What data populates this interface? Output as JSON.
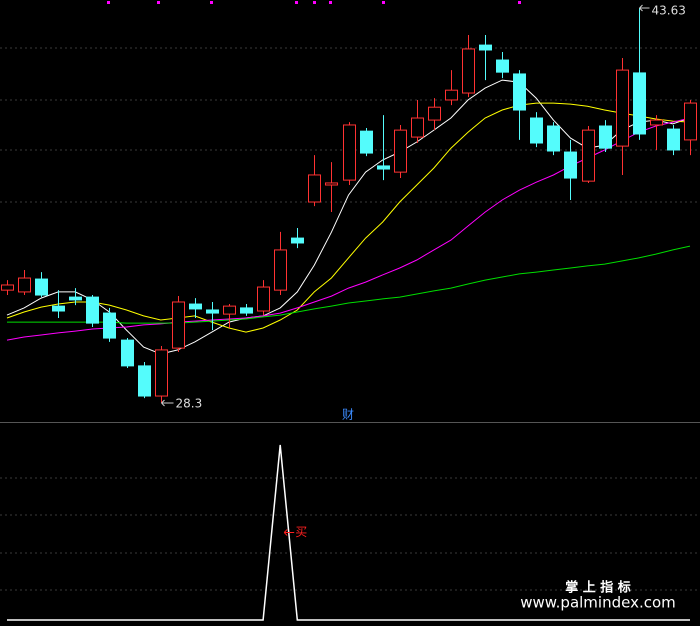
{
  "chart_data": {
    "type": "candlestick",
    "open": [
      32.68,
      32.61,
      33.11,
      32.06,
      32.41,
      32.41,
      31.79,
      30.74,
      29.74,
      28.57,
      30.43,
      32.14,
      31.91,
      31.75,
      31.99,
      31.87,
      32.68,
      34.7,
      36.1,
      36.76,
      36.95,
      38.85,
      37.5,
      37.26,
      38.62,
      39.28,
      40.06,
      40.33,
      42.19,
      41.61,
      41.07,
      39.36,
      39.05,
      38.04,
      36.91,
      39.05,
      38.27,
      41.11,
      39.09,
      38.93,
      38.51
    ],
    "high": [
      33.07,
      33.46,
      33.38,
      32.68,
      32.76,
      32.49,
      31.99,
      30.82,
      29.89,
      30.51,
      32.45,
      32.37,
      32.22,
      32.14,
      32.14,
      33.07,
      34.94,
      35.09,
      37.92,
      37.65,
      39.2,
      38.97,
      39.47,
      39.09,
      40.06,
      40.13,
      41.22,
      42.58,
      42.58,
      41.92,
      41.22,
      39.59,
      39.2,
      38.51,
      39.05,
      39.28,
      41.69,
      43.63,
      39.47,
      39.09,
      40.06
    ],
    "low": [
      32.49,
      32.49,
      32.41,
      31.6,
      32.1,
      31.25,
      30.67,
      29.66,
      28.49,
      28.3,
      30.28,
      31.6,
      31.13,
      31.21,
      31.68,
      31.71,
      32.49,
      34.31,
      35.94,
      35.71,
      36.76,
      37.88,
      36.95,
      37.03,
      38.39,
      38.89,
      39.86,
      40.17,
      40.83,
      40.91,
      38.51,
      38.23,
      37.92,
      36.18,
      36.84,
      38.04,
      37.15,
      38.51,
      38.12,
      37.92,
      37.92
    ],
    "close": [
      32.88,
      33.15,
      32.49,
      31.87,
      32.3,
      31.4,
      30.82,
      29.74,
      28.57,
      30.36,
      32.22,
      31.95,
      31.79,
      32.06,
      31.79,
      32.8,
      34.24,
      34.51,
      37.15,
      36.84,
      39.09,
      38.0,
      37.38,
      38.89,
      39.36,
      39.78,
      40.44,
      42.04,
      42.0,
      41.14,
      39.67,
      38.39,
      38.08,
      37.03,
      38.89,
      38.19,
      41.22,
      38.74,
      39.28,
      38.12,
      39.94
    ],
    "up_color": "#ff3232",
    "down_color": "#54fcfc",
    "ylim": [
      27.64,
      43.94
    ],
    "moving_averages": [
      {
        "color": "#ffffff",
        "values": [
          31.71,
          31.99,
          32.37,
          32.61,
          32.61,
          32.3,
          31.83,
          31.13,
          30.47,
          30.2,
          30.36,
          30.67,
          31.05,
          31.44,
          31.6,
          31.68,
          31.99,
          32.61,
          33.65,
          34.93,
          36.37,
          37.26,
          37.73,
          38.04,
          38.43,
          38.89,
          39.36,
          40.06,
          40.52,
          40.83,
          40.75,
          40.13,
          39.28,
          38.58,
          38.19,
          38.31,
          38.89,
          39.2,
          39.28,
          39.13,
          39.36
        ]
      },
      {
        "color": "#ffff00",
        "values": [
          31.6,
          31.83,
          32.02,
          32.14,
          32.22,
          32.22,
          32.1,
          31.91,
          31.68,
          31.52,
          31.6,
          31.68,
          31.44,
          31.21,
          31.05,
          31.21,
          31.52,
          31.91,
          32.61,
          33.15,
          33.93,
          34.7,
          35.32,
          36.1,
          36.76,
          37.42,
          38.19,
          38.81,
          39.36,
          39.67,
          39.86,
          39.94,
          39.94,
          39.9,
          39.82,
          39.67,
          39.55,
          39.44,
          39.32,
          39.24,
          39.2
        ]
      },
      {
        "color": "#ff00ff",
        "values": [
          30.74,
          30.86,
          30.94,
          31.02,
          31.09,
          31.17,
          31.21,
          31.25,
          31.33,
          31.37,
          31.44,
          31.48,
          31.52,
          31.56,
          31.6,
          31.68,
          31.79,
          31.99,
          32.22,
          32.45,
          32.76,
          32.99,
          33.27,
          33.54,
          33.85,
          34.24,
          34.62,
          35.17,
          35.71,
          36.18,
          36.56,
          36.87,
          37.15,
          37.5,
          37.81,
          38.12,
          38.47,
          38.81,
          39.05,
          39.2,
          39.36
        ]
      },
      {
        "color": "#00dd00",
        "values": [
          31.44,
          31.44,
          31.44,
          31.44,
          31.44,
          31.44,
          31.44,
          31.4,
          31.4,
          31.4,
          31.4,
          31.44,
          31.48,
          31.52,
          31.56,
          31.64,
          31.71,
          31.83,
          31.95,
          32.06,
          32.18,
          32.26,
          32.34,
          32.41,
          32.53,
          32.65,
          32.76,
          32.92,
          33.07,
          33.19,
          33.31,
          33.38,
          33.46,
          33.54,
          33.62,
          33.69,
          33.81,
          33.93,
          34.08,
          34.24,
          34.39
        ]
      }
    ],
    "annotation": "财",
    "annotation_color": "#3c8cff",
    "signal": {
      "color": "#ffffff",
      "ylim": [
        0,
        1
      ],
      "values": [
        0,
        0,
        0,
        0,
        0,
        0,
        0,
        0,
        0,
        0,
        0,
        0,
        0,
        0,
        0,
        0,
        1,
        0,
        0,
        0,
        0,
        0,
        0,
        0,
        0,
        0,
        0,
        0,
        0,
        0,
        0,
        0,
        0,
        0,
        0,
        0,
        0,
        0,
        0,
        0,
        0
      ],
      "label": "买",
      "label_color": "#ff2020"
    },
    "watermark": [
      "掌 上 指 标",
      "www.palmindex.com"
    ]
  }
}
